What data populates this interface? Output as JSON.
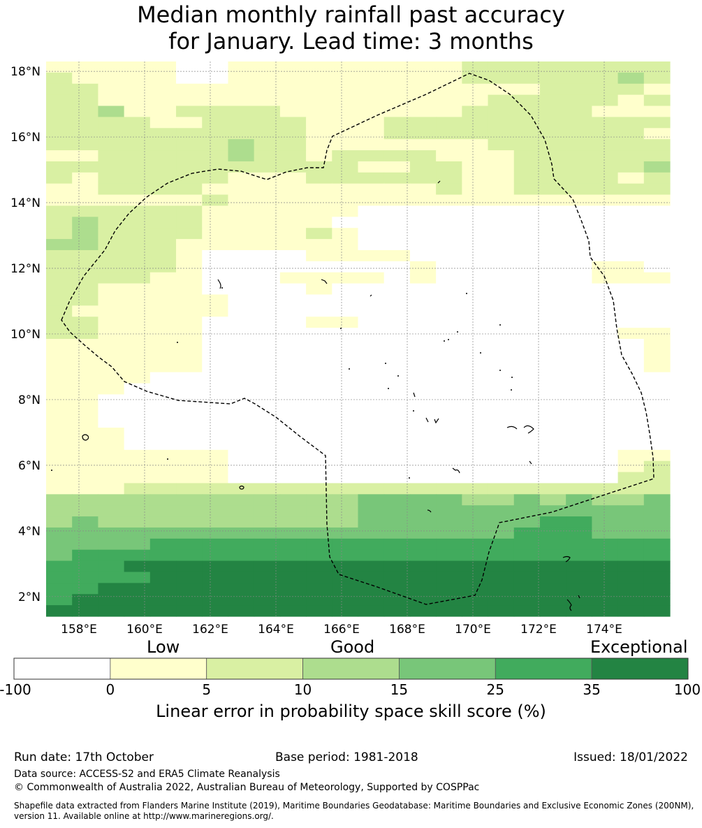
{
  "title": {
    "line1": "Median monthly rainfall past accuracy",
    "line2": "for January. Lead time: 3 months"
  },
  "map": {
    "lat_range": [
      1.4,
      18.3
    ],
    "lon_range": [
      157.0,
      176.0
    ],
    "lat_ticks": [
      {
        "value": 18,
        "label": "18°N"
      },
      {
        "value": 16,
        "label": "16°N"
      },
      {
        "value": 14,
        "label": "14°N"
      },
      {
        "value": 12,
        "label": "12°N"
      },
      {
        "value": 10,
        "label": "10°N"
      },
      {
        "value": 8,
        "label": "8°N"
      },
      {
        "value": 6,
        "label": "6°N"
      },
      {
        "value": 4,
        "label": "4°N"
      },
      {
        "value": 2,
        "label": "2°N"
      }
    ],
    "lon_ticks": [
      {
        "value": 158,
        "label": "158°E"
      },
      {
        "value": 160,
        "label": "160°E"
      },
      {
        "value": 162,
        "label": "162°E"
      },
      {
        "value": 164,
        "label": "164°E"
      },
      {
        "value": 166,
        "label": "166°E"
      },
      {
        "value": 168,
        "label": "168°E"
      },
      {
        "value": 170,
        "label": "170°E"
      },
      {
        "value": 172,
        "label": "172°E"
      },
      {
        "value": 174,
        "label": "174°E"
      }
    ],
    "colors": [
      "#ffffff",
      "#ffffcc",
      "#d9f0a3",
      "#addd8e",
      "#78c679",
      "#41ab5d",
      "#238443"
    ],
    "grid_rows": [
      "111110011111111122222222",
      "211110011111111122222232",
      "221111111111111111122221",
      "221111111111111112222212",
      "223112222111111122222111",
      "222211222211122222222222",
      "222222222211122222222221",
      "222222232211111112222222",
      "112222232212222111222222",
      "222222222222112211222223",
      "212222211122222211222212",
      "112222111111111211222222",
      "111111211111111111111111",
      "222222111111000000000000",
      "232222111110000000000000",
      "232222111121000000000000",
      "332221111111000000000000",
      "222221000011110000000000",
      "222221000000001000000110",
      "222211000111101000000111",
      "221111000010000000000000",
      "221111100000000000000000",
      "211111100000000000000000",
      "221111000011000000000000",
      "221111000000000000000011",
      "111111000000000000000001",
      "111111000000000000000001",
      "111111000000000000000001",
      "111100000000000000000000",
      "111000000000000000000000",
      "110000000000000000000000",
      "110000000000000000000000",
      "110000000000000000000000",
      "111000000000000000000000",
      "111000000000000000000000",
      "111111100000000000000011",
      "111111100000000000000012",
      "111111100000000000000022",
      "111222222222222222222222",
      "333333333333444433434334",
      "333333333333444444444444",
      "343333333333444444455444",
      "444444444444444444555444",
      "444455555555555555555555",
      "455555555555555555555555",
      "555666666666666666666666",
      "555566666666666666666666",
      "556666666666666666666666",
      "566666666666666666666666",
      "666666666666666666666666"
    ]
  },
  "colorbar": {
    "category_labels": {
      "low": "Low",
      "good": "Good",
      "exceptional": "Exceptional"
    },
    "colors": [
      "#ffffff",
      "#ffffcc",
      "#d9f0a3",
      "#addd8e",
      "#78c679",
      "#41ab5d",
      "#238443"
    ],
    "tick_labels": [
      "-100",
      "0",
      "5",
      "10",
      "15",
      "25",
      "35",
      "100"
    ],
    "title": "Linear error in probability space skill score (%)"
  },
  "footer": {
    "run_date": "Run date: 17th October",
    "base_period": "Base period: 1981-2018",
    "issued": "Issued: 18/01/2022",
    "data_source": "Data source: ACCESS-S2 and ERA5 Climate Reanalysis",
    "copyright": "© Commonwealth of Australia 2022, Australian Bureau of Meteorology, Supported by COSPPac",
    "shapefile": "Shapefile data extracted from Flanders Marine Institute (2019), Maritime Boundaries Geodatabase: Maritime Boundaries and Exclusive Economic Zones (200NM), version 11. Available online at http://www.marineregions.org/."
  }
}
